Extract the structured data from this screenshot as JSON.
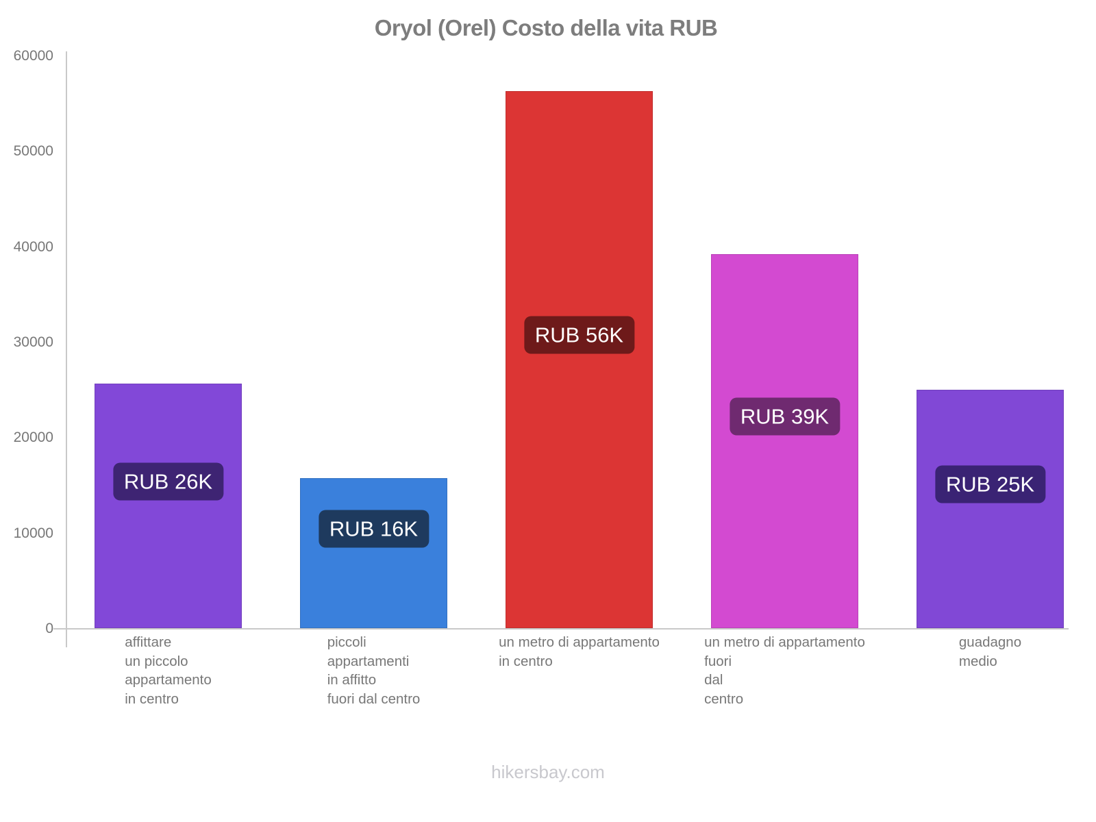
{
  "title": "Oryol (Orel) Costo della vita RUB",
  "footer": "hikersbay.com",
  "chart_data": {
    "type": "bar",
    "title": "Oryol (Orel) Costo della vita RUB",
    "currency": "RUB",
    "categories": [
      [
        "affittare",
        "un piccolo",
        "appartamento",
        "in centro"
      ],
      [
        "piccoli",
        "appartamenti",
        "in affitto",
        "fuori dal centro"
      ],
      [
        "un metro di appartamento",
        "in centro"
      ],
      [
        "un metro di appartamento",
        "fuori",
        "dal",
        "centro"
      ],
      [
        "guadagno",
        "medio"
      ]
    ],
    "values": [
      25600,
      15700,
      56300,
      39200,
      25000
    ],
    "value_labels": [
      "RUB 26K",
      "RUB 16K",
      "RUB 56K",
      "RUB 39K",
      "RUB 25K"
    ],
    "bar_colors": [
      "#8248d8",
      "#3a80dc",
      "#dc3534",
      "#d34ad1",
      "#8148d6"
    ],
    "label_bg_colors": [
      "#3e2473",
      "#1e3a5e",
      "#6e1a1a",
      "#6f2a70",
      "#3a2374"
    ],
    "xlabel": "",
    "ylabel": "",
    "ylim": [
      0,
      60000
    ],
    "yticks": [
      0,
      10000,
      20000,
      30000,
      40000,
      50000,
      60000
    ],
    "grid": false,
    "legend": false
  },
  "colors": {
    "axis": "#c9c9c9",
    "tick_text": "#777777",
    "title_text": "#7d7d7d",
    "footer_text": "#c8c8cd",
    "value_text": "#ffffff"
  }
}
